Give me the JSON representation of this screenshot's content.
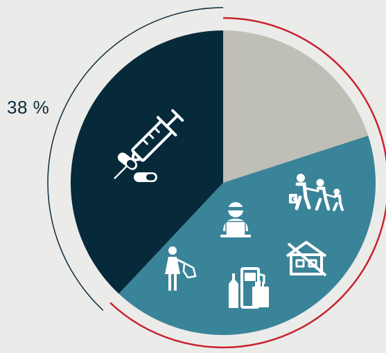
{
  "chart_data": {
    "type": "pie",
    "start_angle_deg": 0,
    "direction": "clockwise",
    "slices": [
      {
        "key": "gray",
        "value": 20,
        "color": "#c0bfb7"
      },
      {
        "key": "teal",
        "value": 42,
        "color": "#3a8499"
      },
      {
        "key": "navy",
        "value": 38,
        "color": "#062a3a"
      }
    ],
    "annotations": [
      {
        "slice": "navy",
        "text": "38 %"
      }
    ],
    "outer_arcs": [
      {
        "color": "#c8232c",
        "from_value": 0,
        "to_value": 62
      },
      {
        "color": "#0d2b3a",
        "from_value": 62,
        "to_value": 100
      }
    ],
    "icons": [
      "syringe-icon",
      "pills-icon",
      "hacker-icon",
      "family-icon",
      "foreclosed-house-icon",
      "person-shopping-icon",
      "alcohol-fuel-cigarettes-icon"
    ]
  }
}
